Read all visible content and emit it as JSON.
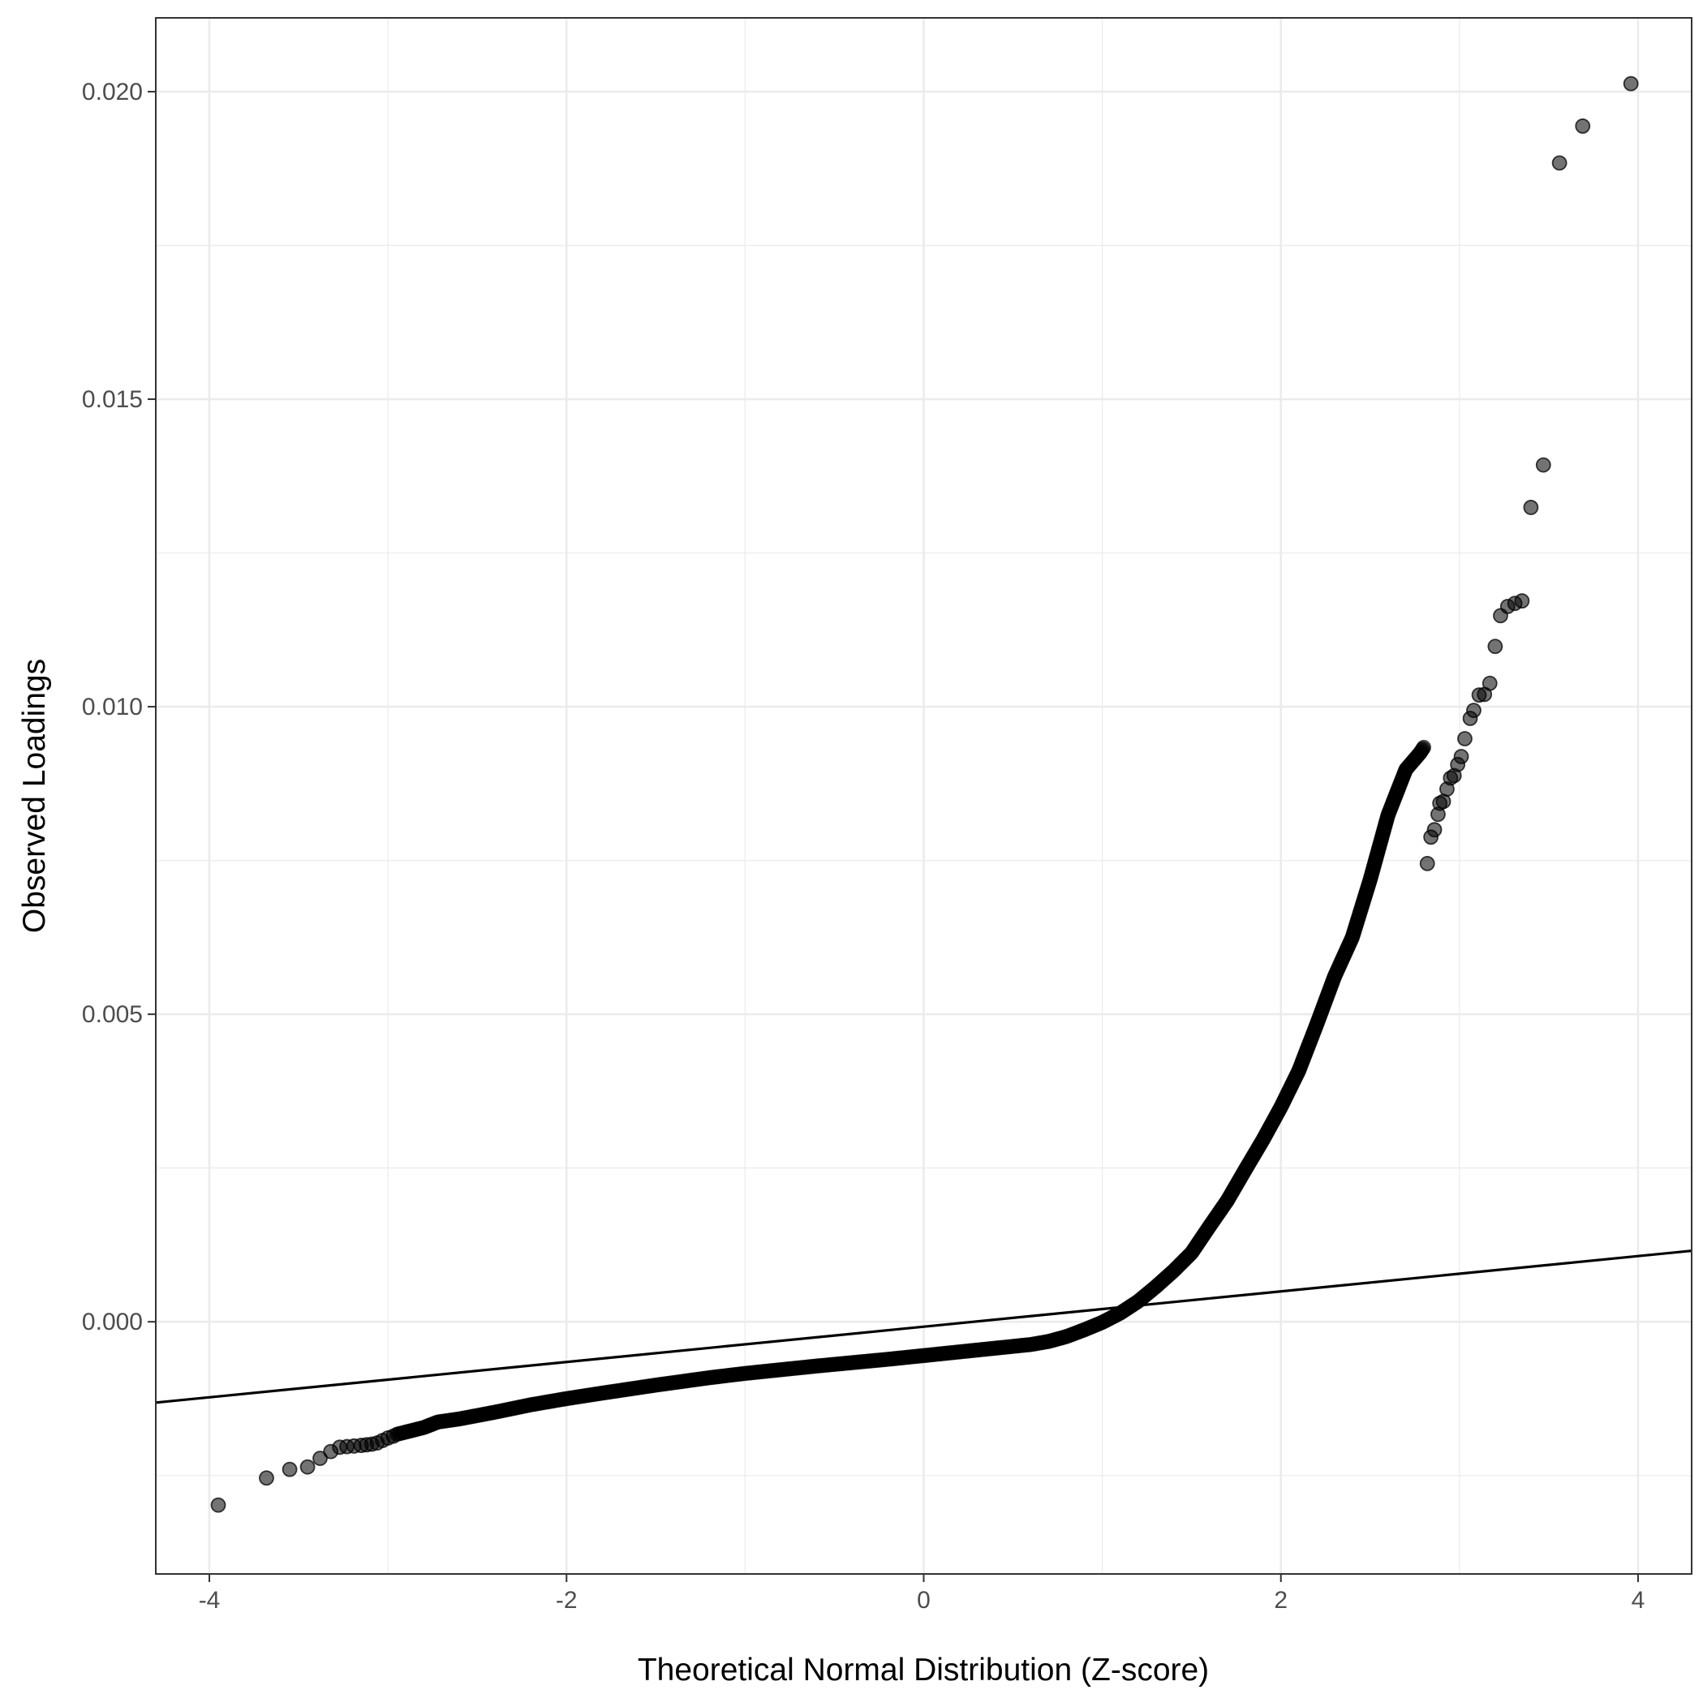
{
  "chart_data": {
    "type": "scatter",
    "subtype": "qq-plot",
    "title": "",
    "xlabel": "Theoretical Normal Distribution (Z-score)",
    "ylabel": "Observed Loadings",
    "xlim": [
      -4.3,
      4.3
    ],
    "ylim": [
      -0.0041,
      0.0212
    ],
    "x_ticks": [
      -4,
      -2,
      0,
      2,
      4
    ],
    "x_tick_labels": [
      "-4",
      "-2",
      "0",
      "2",
      "4"
    ],
    "y_ticks": [
      0.0,
      0.005,
      0.01,
      0.015,
      0.02
    ],
    "y_tick_labels": [
      "0.000",
      "0.005",
      "0.010",
      "0.015",
      "0.020"
    ],
    "grid": true,
    "legend": "none",
    "colors": {
      "points": "#000000",
      "line": "#000000",
      "grid": "#ebebeb",
      "panel_border": "#333333",
      "background": "#ffffff"
    },
    "reference_line": {
      "intercept": -8e-05,
      "slope": 0.000287
    },
    "outlier_points": [
      {
        "x": -3.95,
        "y": -0.00298
      },
      {
        "x": -3.68,
        "y": -0.00254
      },
      {
        "x": -3.55,
        "y": -0.0024
      },
      {
        "x": -3.45,
        "y": -0.00236
      },
      {
        "x": -3.38,
        "y": -0.00222
      },
      {
        "x": -3.32,
        "y": -0.00211
      },
      {
        "x": -3.27,
        "y": -0.00204
      },
      {
        "x": -3.23,
        "y": -0.00203
      },
      {
        "x": -3.19,
        "y": -0.00202
      },
      {
        "x": -3.15,
        "y": -0.00201
      },
      {
        "x": -3.12,
        "y": -0.002
      },
      {
        "x": -3.09,
        "y": -0.00199
      },
      {
        "x": -3.06,
        "y": -0.00197
      },
      {
        "x": -3.03,
        "y": -0.00193
      },
      {
        "x": -3.0,
        "y": -0.00189
      },
      {
        "x": -2.97,
        "y": -0.00186
      },
      {
        "x": 2.82,
        "y": 0.00745
      },
      {
        "x": 2.84,
        "y": 0.00788
      },
      {
        "x": 2.86,
        "y": 0.008
      },
      {
        "x": 2.88,
        "y": 0.00825
      },
      {
        "x": 2.89,
        "y": 0.00843
      },
      {
        "x": 2.91,
        "y": 0.00846
      },
      {
        "x": 2.93,
        "y": 0.00866
      },
      {
        "x": 2.95,
        "y": 0.00884
      },
      {
        "x": 2.97,
        "y": 0.00888
      },
      {
        "x": 2.99,
        "y": 0.00906
      },
      {
        "x": 3.01,
        "y": 0.00919
      },
      {
        "x": 3.03,
        "y": 0.00948
      },
      {
        "x": 3.06,
        "y": 0.00981
      },
      {
        "x": 3.08,
        "y": 0.00994
      },
      {
        "x": 3.11,
        "y": 0.01019
      },
      {
        "x": 3.14,
        "y": 0.0102
      },
      {
        "x": 3.17,
        "y": 0.01038
      },
      {
        "x": 3.2,
        "y": 0.01098
      },
      {
        "x": 3.23,
        "y": 0.01148
      },
      {
        "x": 3.27,
        "y": 0.01163
      },
      {
        "x": 3.31,
        "y": 0.01168
      },
      {
        "x": 3.35,
        "y": 0.01172
      },
      {
        "x": 3.4,
        "y": 0.01324
      },
      {
        "x": 3.47,
        "y": 0.01393
      },
      {
        "x": 3.56,
        "y": 0.01884
      },
      {
        "x": 3.69,
        "y": 0.01944
      },
      {
        "x": 3.96,
        "y": 0.02013
      }
    ],
    "dense_curve": [
      {
        "x": -2.95,
        "y": -0.00183
      },
      {
        "x": -2.8,
        "y": -0.00172
      },
      {
        "x": -2.72,
        "y": -0.00163
      },
      {
        "x": -2.6,
        "y": -0.00158
      },
      {
        "x": -2.4,
        "y": -0.00147
      },
      {
        "x": -2.2,
        "y": -0.00135
      },
      {
        "x": -2.0,
        "y": -0.00125
      },
      {
        "x": -1.8,
        "y": -0.00116
      },
      {
        "x": -1.5,
        "y": -0.00103
      },
      {
        "x": -1.2,
        "y": -0.00091
      },
      {
        "x": -1.0,
        "y": -0.00084
      },
      {
        "x": -0.6,
        "y": -0.00072
      },
      {
        "x": -0.2,
        "y": -0.00061
      },
      {
        "x": 0.0,
        "y": -0.00055
      },
      {
        "x": 0.2,
        "y": -0.00049
      },
      {
        "x": 0.4,
        "y": -0.00043
      },
      {
        "x": 0.6,
        "y": -0.00037
      },
      {
        "x": 0.7,
        "y": -0.00032
      },
      {
        "x": 0.8,
        "y": -0.00024
      },
      {
        "x": 0.9,
        "y": -0.00013
      },
      {
        "x": 1.0,
        "y": -1e-05
      },
      {
        "x": 1.1,
        "y": 0.00014
      },
      {
        "x": 1.2,
        "y": 0.00033
      },
      {
        "x": 1.3,
        "y": 0.00057
      },
      {
        "x": 1.4,
        "y": 0.00083
      },
      {
        "x": 1.5,
        "y": 0.00112
      },
      {
        "x": 1.6,
        "y": 0.00155
      },
      {
        "x": 1.7,
        "y": 0.00197
      },
      {
        "x": 1.8,
        "y": 0.00247
      },
      {
        "x": 1.9,
        "y": 0.00296
      },
      {
        "x": 2.0,
        "y": 0.00349
      },
      {
        "x": 2.1,
        "y": 0.00408
      },
      {
        "x": 2.2,
        "y": 0.00483
      },
      {
        "x": 2.3,
        "y": 0.00561
      },
      {
        "x": 2.4,
        "y": 0.00625
      },
      {
        "x": 2.5,
        "y": 0.00719
      },
      {
        "x": 2.6,
        "y": 0.00824
      },
      {
        "x": 2.7,
        "y": 0.00898
      },
      {
        "x": 2.78,
        "y": 0.00925
      },
      {
        "x": 2.8,
        "y": 0.00934
      }
    ]
  }
}
